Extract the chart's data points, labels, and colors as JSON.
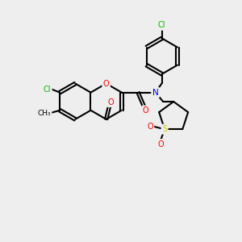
{
  "bg_color": "#eeeeee",
  "bond_color": "#000000",
  "atom_colors": {
    "O": "#ff0000",
    "N": "#0000ff",
    "Cl": "#00bb00",
    "S": "#cccc00",
    "C": "#000000"
  },
  "line_width": 1.5,
  "bl": 0.82
}
